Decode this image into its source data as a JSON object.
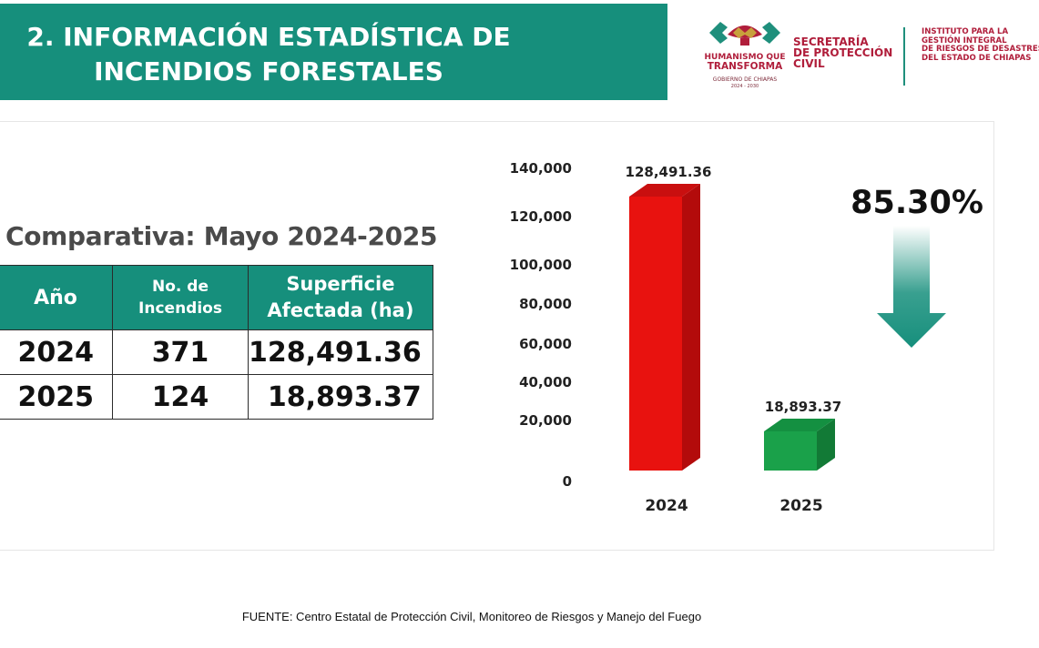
{
  "header": {
    "title_line1": "2. INFORMACIÓN ESTADÍSTICA DE",
    "title_line2": "INCENDIOS FORESTALES",
    "color": "#168f7c"
  },
  "logos": {
    "gobierno_line1": "HUMANISMO QUE",
    "gobierno_line2": "TRANSFORMA",
    "gobierno_small": "GOBIERNO DE CHIAPAS",
    "gobierno_years": "2024 - 2030",
    "secretaria_lines": [
      "SECRETARÍA",
      "DE PROTECCIÓN",
      "CIVIL"
    ],
    "instituto_lines": [
      "INSTITUTO PARA LA",
      "GESTIÓN INTEGRAL",
      "DE RIESGOS DE DESASTRES",
      "DEL ESTADO DE CHIAPAS"
    ],
    "brand_color": "#b01e3b"
  },
  "table": {
    "title": "Comparativa: Mayo 2024-2025",
    "headers": {
      "year": "Año",
      "fires_line1": "No. de",
      "fires_line2": "Incendios",
      "area_line1": "Superficie",
      "area_line2": "Afectada (ha)"
    },
    "rows": [
      {
        "year": "2024",
        "fires": "371",
        "area": "128,491.36"
      },
      {
        "year": "2025",
        "fires": "124",
        "area": "18,893.37"
      }
    ]
  },
  "chart_data": {
    "type": "bar",
    "title": "",
    "categories": [
      "2024",
      "2025"
    ],
    "values": [
      128491.36,
      18893.37
    ],
    "data_labels": [
      "128,491.36",
      "18,893.37"
    ],
    "bar_colors": [
      "#e8120f",
      "#1aa14a"
    ],
    "yticks": [
      0,
      20000,
      40000,
      60000,
      80000,
      100000,
      120000,
      140000
    ],
    "ytick_labels": [
      "0",
      "20,000",
      "40,000",
      "60,000",
      "80,000",
      "100,000",
      "120,000",
      "140,000"
    ],
    "ylim": [
      0,
      140000
    ],
    "xlabel": "",
    "ylabel": "",
    "grid": false,
    "annotation": "85.30%",
    "annotation_arrow_color": "#168f7c"
  },
  "footer": {
    "source": "FUENTE: Centro Estatal de Protección Civil, Monitoreo de Riesgos y Manejo del Fuego"
  }
}
